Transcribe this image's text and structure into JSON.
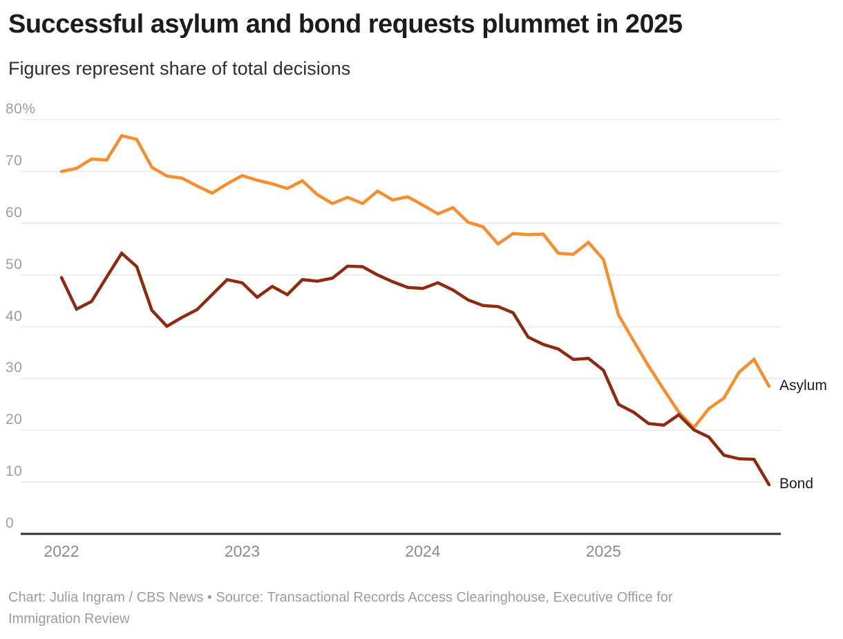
{
  "header": {
    "title": "Successful asylum and bond requests plummet in 2025",
    "subtitle": "Figures represent share of total decisions"
  },
  "chart_data": {
    "type": "line",
    "unit": "%",
    "x_start": "2022-01",
    "x_end": "2025-12",
    "points_per_series": 48,
    "x_tick_labels": [
      "2022",
      "2023",
      "2024",
      "2025"
    ],
    "y_ticks": [
      0,
      10,
      20,
      30,
      40,
      50,
      60,
      70,
      80
    ],
    "y_top_tick_label": "80%",
    "ylim": [
      0,
      80
    ],
    "grid": "horizontal-only",
    "legend_position": "end-of-line",
    "axis_color": "#2f2f2f",
    "gridline_color": "#e8e8e6",
    "series": [
      {
        "name": "Asylum",
        "color": "#f78d2c",
        "values": [
          70.0,
          70.6,
          72.4,
          72.2,
          76.9,
          76.2,
          70.8,
          69.1,
          68.7,
          67.2,
          65.8,
          67.6,
          69.2,
          68.3,
          67.6,
          66.7,
          68.2,
          65.5,
          63.8,
          65.0,
          63.8,
          66.2,
          64.5,
          65.1,
          63.5,
          61.8,
          63.0,
          60.2,
          59.3,
          56.0,
          58.0,
          57.8,
          57.9,
          54.2,
          54.0,
          56.3,
          53.0,
          42.3,
          37.3,
          32.4,
          27.9,
          23.5,
          20.5,
          24.2,
          26.2,
          31.2,
          33.7,
          28.5
        ]
      },
      {
        "name": "Bond",
        "color": "#8d2b10",
        "values": [
          49.5,
          43.4,
          44.9,
          49.6,
          54.2,
          51.6,
          43.2,
          40.1,
          41.8,
          43.3,
          46.2,
          49.1,
          48.5,
          45.7,
          47.8,
          46.2,
          49.1,
          48.8,
          49.4,
          51.7,
          51.6,
          50.0,
          48.7,
          47.6,
          47.4,
          48.5,
          47.1,
          45.2,
          44.1,
          43.9,
          42.7,
          38.0,
          36.6,
          35.7,
          33.7,
          33.9,
          31.6,
          25.0,
          23.5,
          21.3,
          21.0,
          23.0,
          20.1,
          18.7,
          15.2,
          14.5,
          14.4,
          9.5
        ]
      }
    ]
  },
  "footer": {
    "credit_lines": [
      "Chart: Julia Ingram / CBS News • Source: Transactional Records Access Clearinghouse, Executive Office for",
      "Immigration Review"
    ]
  }
}
